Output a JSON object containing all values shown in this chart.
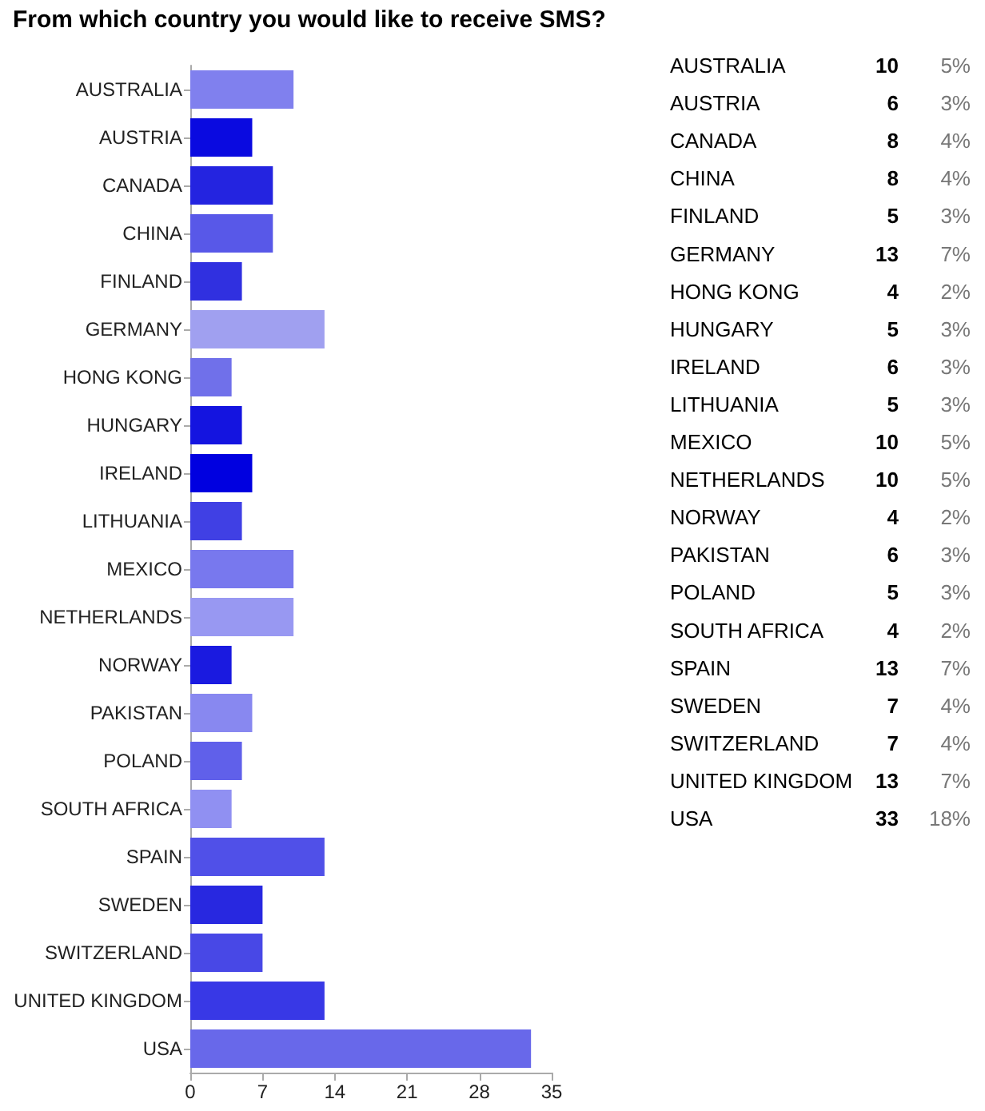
{
  "chart_data": [
    {
      "type": "bar",
      "title": "From which country you would like to receive SMS?",
      "orientation": "horizontal",
      "categories": [
        "AUSTRALIA",
        "AUSTRIA",
        "CANADA",
        "CHINA",
        "FINLAND",
        "GERMANY",
        "HONG KONG",
        "HUNGARY",
        "IRELAND",
        "LITHUANIA",
        "MEXICO",
        "NETHERLANDS",
        "NORWAY",
        "PAKISTAN",
        "POLAND",
        "SOUTH AFRICA",
        "SPAIN",
        "SWEDEN",
        "SWITZERLAND",
        "UNITED KINGDOM",
        "USA"
      ],
      "values": [
        10,
        6,
        8,
        8,
        5,
        13,
        4,
        5,
        6,
        5,
        10,
        10,
        4,
        6,
        5,
        4,
        13,
        7,
        7,
        13,
        33
      ],
      "colors": [
        "#8080ee",
        "#0a0ae0",
        "#2424e0",
        "#5858e8",
        "#3030e0",
        "#a0a0f0",
        "#7070ea",
        "#1414e0",
        "#0000e0",
        "#4040e4",
        "#7878ee",
        "#9898f2",
        "#1a1ae0",
        "#8888f0",
        "#6060ea",
        "#9090f2",
        "#5050e8",
        "#2828e0",
        "#4848e6",
        "#3838e6",
        "#6868ea"
      ],
      "xlim": [
        0,
        35
      ],
      "xticks": [
        0,
        7,
        14,
        21,
        28,
        35
      ]
    },
    {
      "type": "other",
      "data_labels": true,
      "categories": [
        "AUSTRALIA",
        "AUSTRIA",
        "CANADA",
        "CHINA",
        "FINLAND",
        "GERMANY",
        "HONG KONG",
        "HUNGARY",
        "IRELAND",
        "LITHUANIA",
        "MEXICO",
        "NETHERLANDS",
        "NORWAY",
        "PAKISTAN",
        "POLAND",
        "SOUTH AFRICA",
        "SPAIN",
        "SWEDEN",
        "SWITZERLAND",
        "UNITED KINGDOM",
        "USA"
      ],
      "series": [
        {
          "values": [
            10,
            6,
            8,
            8,
            5,
            13,
            4,
            5,
            6,
            5,
            10,
            10,
            4,
            6,
            5,
            4,
            13,
            7,
            7,
            13,
            33
          ]
        },
        {
          "values": [
            5,
            3,
            4,
            4,
            3,
            7,
            2,
            3,
            3,
            3,
            5,
            5,
            2,
            3,
            3,
            2,
            7,
            4,
            4,
            7,
            18
          ],
          "value_labels": [
            "5%",
            "3%",
            "4%",
            "4%",
            "3%",
            "7%",
            "2%",
            "3%",
            "3%",
            "3%",
            "5%",
            "5%",
            "2%",
            "3%",
            "3%",
            "2%",
            "7%",
            "4%",
            "4%",
            "7%",
            "18%"
          ]
        }
      ]
    }
  ]
}
